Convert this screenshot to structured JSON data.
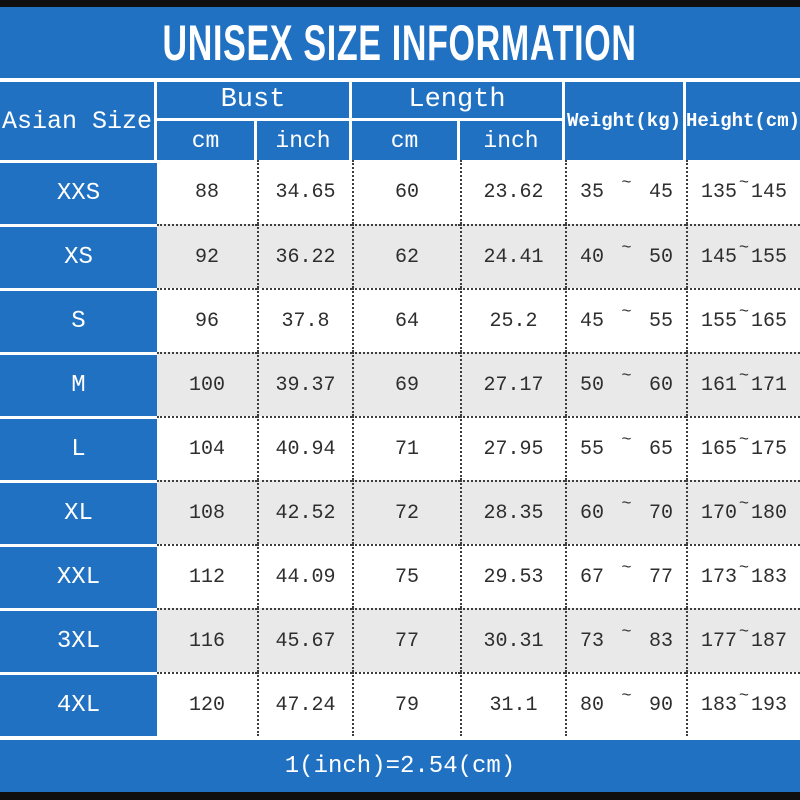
{
  "title": "UNISEX SIZE INFORMATION",
  "conversion_note": "1(inch)=2.54(cm)",
  "colors": {
    "accent_blue": "#2171c2",
    "top_bottom_bar": "#0f0f0f",
    "alt_row_gray": "#e9e9e9",
    "text_dark": "#2e2e2e"
  },
  "table": {
    "corner_header": "Asian Size",
    "group_headers": [
      {
        "label": "Bust",
        "subs": [
          "cm",
          "inch"
        ]
      },
      {
        "label": "Length",
        "subs": [
          "cm",
          "inch"
        ]
      }
    ],
    "span_headers": [
      "Weight(kg)",
      "Height(cm)"
    ],
    "tilde": "~",
    "rows": [
      {
        "size": "XXS",
        "bust_cm": "88",
        "bust_inch": "34.65",
        "length_cm": "60",
        "length_inch": "23.62",
        "weight": [
          "35",
          "45"
        ],
        "height": [
          "135",
          "145"
        ]
      },
      {
        "size": "XS",
        "bust_cm": "92",
        "bust_inch": "36.22",
        "length_cm": "62",
        "length_inch": "24.41",
        "weight": [
          "40",
          "50"
        ],
        "height": [
          "145",
          "155"
        ]
      },
      {
        "size": "S",
        "bust_cm": "96",
        "bust_inch": "37.8",
        "length_cm": "64",
        "length_inch": "25.2",
        "weight": [
          "45",
          "55"
        ],
        "height": [
          "155",
          "165"
        ]
      },
      {
        "size": "M",
        "bust_cm": "100",
        "bust_inch": "39.37",
        "length_cm": "69",
        "length_inch": "27.17",
        "weight": [
          "50",
          "60"
        ],
        "height": [
          "161",
          "171"
        ]
      },
      {
        "size": "L",
        "bust_cm": "104",
        "bust_inch": "40.94",
        "length_cm": "71",
        "length_inch": "27.95",
        "weight": [
          "55",
          "65"
        ],
        "height": [
          "165",
          "175"
        ]
      },
      {
        "size": "XL",
        "bust_cm": "108",
        "bust_inch": "42.52",
        "length_cm": "72",
        "length_inch": "28.35",
        "weight": [
          "60",
          "70"
        ],
        "height": [
          "170",
          "180"
        ]
      },
      {
        "size": "XXL",
        "bust_cm": "112",
        "bust_inch": "44.09",
        "length_cm": "75",
        "length_inch": "29.53",
        "weight": [
          "67",
          "77"
        ],
        "height": [
          "173",
          "183"
        ]
      },
      {
        "size": "3XL",
        "bust_cm": "116",
        "bust_inch": "45.67",
        "length_cm": "77",
        "length_inch": "30.31",
        "weight": [
          "73",
          "83"
        ],
        "height": [
          "177",
          "187"
        ]
      },
      {
        "size": "4XL",
        "bust_cm": "120",
        "bust_inch": "47.24",
        "length_cm": "79",
        "length_inch": "31.1",
        "weight": [
          "80",
          "90"
        ],
        "height": [
          "183",
          "193"
        ]
      }
    ]
  }
}
